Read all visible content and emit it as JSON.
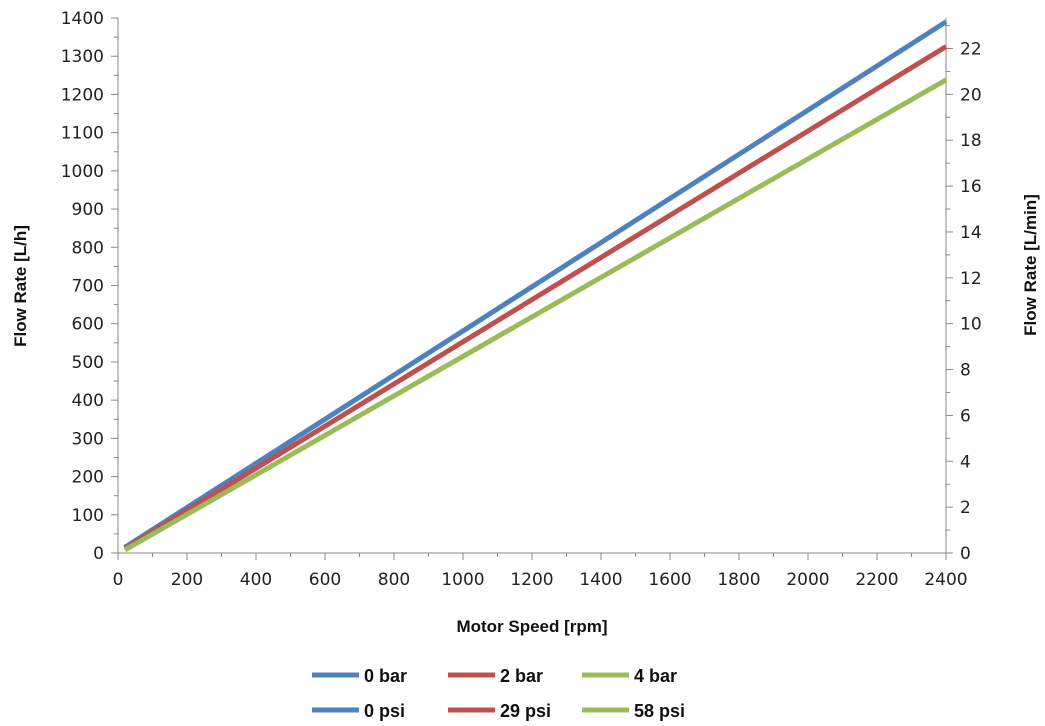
{
  "chart_data": {
    "type": "line",
    "xlabel": "Motor Speed [rpm]",
    "ylabel": "Flow Rate [L/h]",
    "y2label": "Flow Rate [L/min]",
    "xlim": [
      0,
      2400
    ],
    "ylim": [
      0,
      1400
    ],
    "y2lim": [
      0,
      23.33
    ],
    "x_ticks": [
      0,
      200,
      400,
      600,
      800,
      1000,
      1200,
      1400,
      1600,
      1800,
      2000,
      2200,
      2400
    ],
    "y_ticks": [
      0,
      100,
      200,
      300,
      400,
      500,
      600,
      700,
      800,
      900,
      1000,
      1100,
      1200,
      1300,
      1400
    ],
    "y2_ticks": [
      0,
      2,
      4,
      6,
      8,
      10,
      12,
      14,
      16,
      18,
      20,
      22
    ],
    "grid": false,
    "legend_position": "bottom",
    "series": [
      {
        "name": "0 bar",
        "color": "#4f81bd",
        "x": [
          20,
          2400
        ],
        "y": [
          15,
          1390
        ]
      },
      {
        "name": "2 bar",
        "color": "#c0504d",
        "x": [
          20,
          2400
        ],
        "y": [
          12,
          1325
        ]
      },
      {
        "name": "4 bar",
        "color": "#9bbb59",
        "x": [
          20,
          2400
        ],
        "y": [
          8,
          1238
        ]
      }
    ],
    "legend_rows": [
      [
        {
          "label": "0 bar",
          "color": "#4f81bd"
        },
        {
          "label": "2 bar",
          "color": "#c0504d"
        },
        {
          "label": "4 bar",
          "color": "#9bbb59"
        }
      ],
      [
        {
          "label": "0 psi",
          "color": "#4f81bd"
        },
        {
          "label": "29 psi",
          "color": "#c0504d"
        },
        {
          "label": "58 psi",
          "color": "#9bbb59"
        }
      ]
    ]
  }
}
